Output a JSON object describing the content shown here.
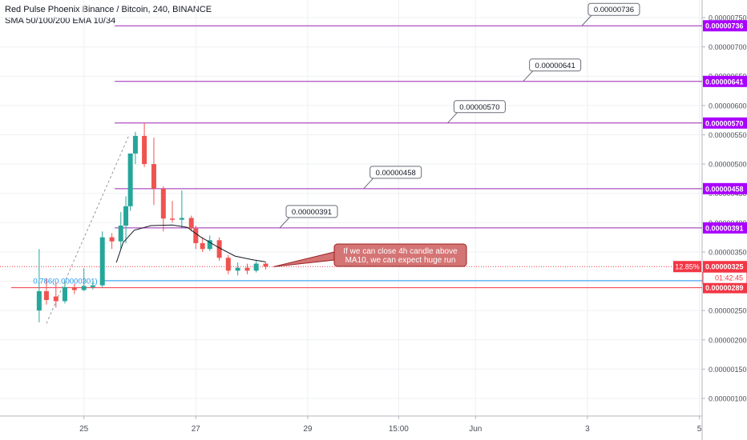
{
  "header": {
    "title": "Red Pulse Phoenix Binance / Bitcoin, 240, BINANCE",
    "indicators": "SMA 50/100/200 EMA 10/34"
  },
  "colors": {
    "up": "#26a69a",
    "down": "#ef5350",
    "level_line": "#9c27b0",
    "level_tag": "#aa00ff",
    "fib_line": "#2196f3",
    "fib_text": "#2196f3",
    "support_line": "#f23645",
    "price_tag": "#f23645",
    "ema_line": "#131722",
    "grid": "#eef0f3",
    "callout_bg": "#d47474",
    "callout_border": "#9a1f1f"
  },
  "chart_data": {
    "type": "candlestick",
    "symbol": "Red Pulse Phoenix Binance / Bitcoin",
    "interval": "240",
    "exchange": "BINANCE",
    "y_range": [
      7e-07,
      7.8e-06
    ],
    "x_range": [
      23.5,
      36.05
    ],
    "y_ticks": [
      "0.00000100",
      "0.00000150",
      "0.00000200",
      "0.00000250",
      "0.00000300",
      "0.00000350",
      "0.00000400",
      "0.00000450",
      "0.00000500",
      "0.00000550",
      "0.00000600",
      "0.00000650",
      "0.00000700",
      "0.00000750"
    ],
    "x_ticks": [
      {
        "t": 25,
        "label": "25"
      },
      {
        "t": 27,
        "label": "27"
      },
      {
        "t": 29,
        "label": "29"
      },
      {
        "t": 30.625,
        "label": "15:00"
      },
      {
        "t": 32,
        "label": "Jun"
      },
      {
        "t": 34,
        "label": "3"
      },
      {
        "t": 36,
        "label": "5"
      }
    ],
    "candles": [
      {
        "t": 24.2,
        "o": 2.5e-06,
        "h": 3.55e-06,
        "l": 2.3e-06,
        "c": 2.83e-06
      },
      {
        "t": 24.33,
        "o": 2.83e-06,
        "h": 3.05e-06,
        "l": 2.6e-06,
        "c": 2.68e-06
      },
      {
        "t": 24.5,
        "o": 2.74e-06,
        "h": 2.98e-06,
        "l": 2.55e-06,
        "c": 2.66e-06
      },
      {
        "t": 24.66,
        "o": 2.66e-06,
        "h": 3e-06,
        "l": 2.62e-06,
        "c": 2.9e-06
      },
      {
        "t": 24.83,
        "o": 2.9e-06,
        "h": 2.96e-06,
        "l": 2.78e-06,
        "c": 2.85e-06
      },
      {
        "t": 25.0,
        "o": 2.85e-06,
        "h": 3.22e-06,
        "l": 2.83e-06,
        "c": 2.92e-06
      },
      {
        "t": 25.16,
        "o": 2.9e-06,
        "h": 3e-06,
        "l": 2.86e-06,
        "c": 2.93e-06
      },
      {
        "t": 25.33,
        "o": 2.93e-06,
        "h": 3.85e-06,
        "l": 2.9e-06,
        "c": 3.75e-06
      },
      {
        "t": 25.5,
        "o": 3.75e-06,
        "h": 3.82e-06,
        "l": 3.55e-06,
        "c": 3.68e-06
      },
      {
        "t": 25.66,
        "o": 3.68e-06,
        "h": 4.18e-06,
        "l": 3.55e-06,
        "c": 3.95e-06
      },
      {
        "t": 25.75,
        "o": 3.95e-06,
        "h": 4.45e-06,
        "l": 3.65e-06,
        "c": 4.28e-06
      },
      {
        "t": 25.83,
        "o": 4.28e-06,
        "h": 5.18e-06,
        "l": 4.2e-06,
        "c": 5.18e-06
      },
      {
        "t": 25.92,
        "o": 5.18e-06,
        "h": 5.55e-06,
        "l": 5e-06,
        "c": 5.48e-06
      },
      {
        "t": 26.08,
        "o": 5.48e-06,
        "h": 5.7e-06,
        "l": 4.95e-06,
        "c": 5e-06
      },
      {
        "t": 26.25,
        "o": 5e-06,
        "h": 5.45e-06,
        "l": 4.3e-06,
        "c": 4.58e-06
      },
      {
        "t": 26.42,
        "o": 4.58e-06,
        "h": 4.62e-06,
        "l": 3.85e-06,
        "c": 4.07e-06
      },
      {
        "t": 26.58,
        "o": 4.07e-06,
        "h": 4.37e-06,
        "l": 4e-06,
        "c": 4.05e-06
      },
      {
        "t": 26.75,
        "o": 4.05e-06,
        "h": 4.55e-06,
        "l": 3.9e-06,
        "c": 4.08e-06
      },
      {
        "t": 26.92,
        "o": 4.08e-06,
        "h": 4.12e-06,
        "l": 3.85e-06,
        "c": 3.9e-06
      },
      {
        "t": 27.0,
        "o": 3.9e-06,
        "h": 3.95e-06,
        "l": 3.55e-06,
        "c": 3.65e-06
      },
      {
        "t": 27.12,
        "o": 3.65e-06,
        "h": 3.75e-06,
        "l": 3.5e-06,
        "c": 3.55e-06
      },
      {
        "t": 27.25,
        "o": 3.55e-06,
        "h": 3.78e-06,
        "l": 3.52e-06,
        "c": 3.7e-06
      },
      {
        "t": 27.42,
        "o": 3.7e-06,
        "h": 3.75e-06,
        "l": 3.35e-06,
        "c": 3.4e-06
      },
      {
        "t": 27.58,
        "o": 3.4e-06,
        "h": 3.45e-06,
        "l": 3.12e-06,
        "c": 3.18e-06
      },
      {
        "t": 27.75,
        "o": 3.18e-06,
        "h": 3.32e-06,
        "l": 3.1e-06,
        "c": 3.23e-06
      },
      {
        "t": 27.92,
        "o": 3.23e-06,
        "h": 3.3e-06,
        "l": 3.12e-06,
        "c": 3.18e-06
      },
      {
        "t": 28.08,
        "o": 3.18e-06,
        "h": 3.35e-06,
        "l": 3.15e-06,
        "c": 3.3e-06
      },
      {
        "t": 28.25,
        "o": 3.3e-06,
        "h": 3.32e-06,
        "l": 3.2e-06,
        "c": 3.25e-06
      }
    ],
    "ema": {
      "name": "EMA 10",
      "points": [
        [
          25.58,
          3.32e-06
        ],
        [
          25.7,
          3.66e-06
        ],
        [
          25.9,
          3.87e-06
        ],
        [
          26.2,
          3.95e-06
        ],
        [
          26.58,
          3.96e-06
        ],
        [
          26.85,
          3.92e-06
        ],
        [
          27.08,
          3.76e-06
        ],
        [
          27.4,
          3.58e-06
        ],
        [
          27.7,
          3.43e-06
        ],
        [
          28.0,
          3.37e-06
        ],
        [
          28.25,
          3.33e-06
        ]
      ]
    },
    "trend_line": {
      "from": [
        24.33,
        2.28e-06
      ],
      "to": [
        25.8,
        5.48e-06
      ]
    },
    "horizontal_levels": [
      {
        "value": 7.36e-06,
        "label": "0.00000736",
        "tag": "0.00000736",
        "callout_t": 33.9,
        "x_start": 25.55
      },
      {
        "value": 6.41e-06,
        "label": "0.00000641",
        "tag": "0.00000641",
        "callout_t": 32.85,
        "x_start": 25.55
      },
      {
        "value": 5.7e-06,
        "label": "0.00000570",
        "tag": "0.00000570",
        "callout_t": 31.5,
        "x_start": 25.55
      },
      {
        "value": 4.58e-06,
        "label": "0.00000458",
        "tag": "0.00000458",
        "callout_t": 30.0,
        "x_start": 25.55
      },
      {
        "value": 3.91e-06,
        "label": "0.00000391",
        "tag": "0.00000391",
        "callout_t": 28.5,
        "x_start": 25.55
      }
    ],
    "fib_level": {
      "value": 3.01e-06,
      "label": "0.786(0.00000301)",
      "x_start": 25.3
    },
    "support_level": {
      "value": 2.89e-06,
      "tag": "0.00000289",
      "x_start": 23.7
    },
    "current_price": {
      "value": 3.25e-06,
      "tag": "0.00000325",
      "change": "12.85%",
      "countdown": "01:42:45"
    },
    "annotation": {
      "text_line1": "If we can close 4h candle above",
      "text_line2": "MA10, we can expect huge run",
      "anchor_t": 28.3,
      "anchor_v": 3.22e-06
    }
  }
}
